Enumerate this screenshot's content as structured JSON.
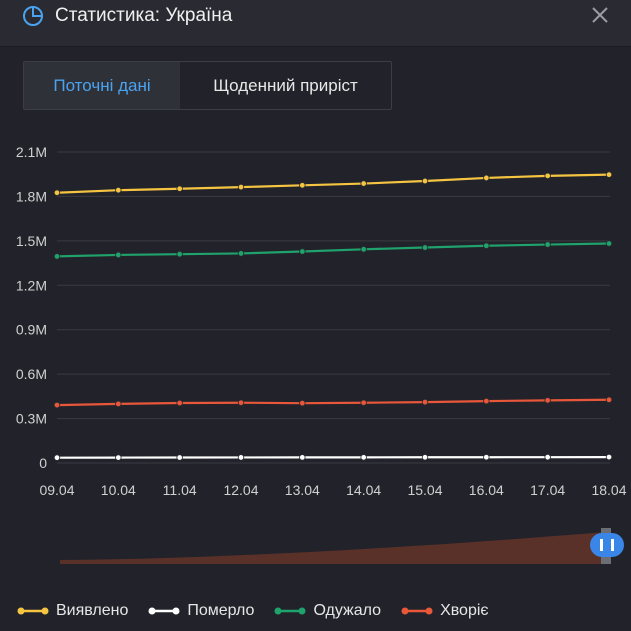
{
  "header": {
    "title": "Статистика: Україна",
    "icon": "pie-chart-icon",
    "close_icon": "close-icon"
  },
  "tabs": [
    {
      "label": "Поточні дані",
      "active": true
    },
    {
      "label": "Щоденний приріст",
      "active": false
    }
  ],
  "colors": {
    "detected": "#f5c542",
    "deceased": "#ffffff",
    "recovered": "#1fa26c",
    "sick": "#e8573a",
    "grid": "#3a3b42",
    "axis_text": "#d0d0d0",
    "accent": "#4aa3f0"
  },
  "chart_data": {
    "type": "line",
    "x": [
      "09.04",
      "10.04",
      "11.04",
      "12.04",
      "13.04",
      "14.04",
      "15.04",
      "16.04",
      "17.04",
      "18.04"
    ],
    "yticks": [
      0,
      300000,
      600000,
      900000,
      1200000,
      1500000,
      1800000,
      2100000
    ],
    "ytick_labels": [
      "0",
      "0.3M",
      "0.6M",
      "0.9M",
      "1.2M",
      "1.5M",
      "1.8M",
      "2.1M"
    ],
    "ylim": [
      0,
      2100000
    ],
    "grid": true,
    "legend_position": "bottom-left",
    "series": [
      {
        "name": "Виявлено",
        "key": "detected",
        "values": [
          1825000,
          1842000,
          1852000,
          1863000,
          1875000,
          1887000,
          1904000,
          1925000,
          1939000,
          1947000
        ]
      },
      {
        "name": "Померло",
        "key": "deceased",
        "values": [
          36000,
          36500,
          37000,
          37400,
          37800,
          38200,
          38600,
          39000,
          39400,
          39800
        ]
      },
      {
        "name": "Одужало",
        "key": "recovered",
        "values": [
          1395000,
          1405000,
          1410000,
          1415000,
          1428000,
          1443000,
          1455000,
          1467000,
          1475000,
          1482000
        ]
      },
      {
        "name": "Хворіє",
        "key": "sick",
        "values": [
          391000,
          399000,
          405000,
          407000,
          404000,
          407000,
          411000,
          418000,
          423000,
          427000
        ]
      }
    ],
    "overview": {
      "description_values": "range slider showing full period with window at the end",
      "handle_icon": "pause-handle-icon"
    }
  }
}
